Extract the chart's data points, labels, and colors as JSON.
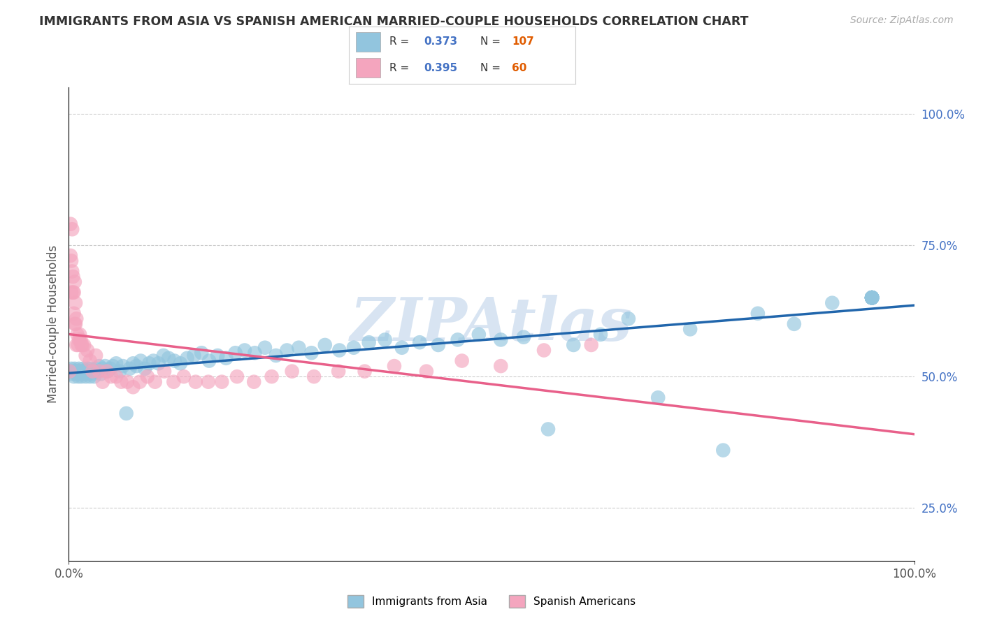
{
  "title": "IMMIGRANTS FROM ASIA VS SPANISH AMERICAN MARRIED-COUPLE HOUSEHOLDS CORRELATION CHART",
  "source": "Source: ZipAtlas.com",
  "ylabel": "Married-couple Households",
  "blue_R": 0.373,
  "blue_N": 107,
  "pink_R": 0.395,
  "pink_N": 60,
  "blue_color": "#92c5de",
  "pink_color": "#f4a5be",
  "blue_line_color": "#2166ac",
  "pink_line_color": "#e8608a",
  "watermark": "ZIPAtlas",
  "legend_label_blue": "Immigrants from Asia",
  "legend_label_pink": "Spanish Americans",
  "blue_scatter_x": [
    0.002,
    0.003,
    0.004,
    0.005,
    0.006,
    0.007,
    0.008,
    0.009,
    0.01,
    0.011,
    0.012,
    0.013,
    0.014,
    0.015,
    0.016,
    0.017,
    0.018,
    0.019,
    0.02,
    0.021,
    0.022,
    0.023,
    0.024,
    0.025,
    0.026,
    0.027,
    0.028,
    0.029,
    0.03,
    0.032,
    0.034,
    0.036,
    0.038,
    0.04,
    0.043,
    0.046,
    0.049,
    0.052,
    0.056,
    0.06,
    0.064,
    0.068,
    0.072,
    0.076,
    0.08,
    0.085,
    0.09,
    0.095,
    0.1,
    0.106,
    0.112,
    0.118,
    0.125,
    0.132,
    0.14,
    0.148,
    0.157,
    0.166,
    0.176,
    0.186,
    0.197,
    0.208,
    0.22,
    0.232,
    0.245,
    0.258,
    0.272,
    0.287,
    0.303,
    0.32,
    0.337,
    0.355,
    0.374,
    0.394,
    0.415,
    0.437,
    0.46,
    0.485,
    0.511,
    0.538,
    0.567,
    0.597,
    0.629,
    0.662,
    0.697,
    0.735,
    0.774,
    0.815,
    0.858,
    0.903,
    0.95,
    0.95,
    0.95,
    0.95,
    0.95,
    0.95,
    0.95,
    0.95,
    0.95,
    0.95,
    0.95,
    0.95,
    0.95,
    0.95,
    0.95,
    0.95,
    0.95
  ],
  "blue_scatter_y": [
    0.51,
    0.515,
    0.505,
    0.51,
    0.5,
    0.515,
    0.51,
    0.505,
    0.51,
    0.5,
    0.515,
    0.51,
    0.505,
    0.5,
    0.51,
    0.515,
    0.505,
    0.51,
    0.5,
    0.51,
    0.515,
    0.505,
    0.51,
    0.5,
    0.515,
    0.51,
    0.505,
    0.51,
    0.5,
    0.515,
    0.51,
    0.52,
    0.505,
    0.515,
    0.52,
    0.51,
    0.515,
    0.52,
    0.525,
    0.51,
    0.52,
    0.43,
    0.515,
    0.525,
    0.52,
    0.53,
    0.515,
    0.525,
    0.53,
    0.525,
    0.54,
    0.535,
    0.53,
    0.525,
    0.535,
    0.54,
    0.545,
    0.53,
    0.54,
    0.535,
    0.545,
    0.55,
    0.545,
    0.555,
    0.54,
    0.55,
    0.555,
    0.545,
    0.56,
    0.55,
    0.555,
    0.565,
    0.57,
    0.555,
    0.565,
    0.56,
    0.57,
    0.58,
    0.57,
    0.575,
    0.4,
    0.56,
    0.58,
    0.61,
    0.46,
    0.59,
    0.36,
    0.62,
    0.6,
    0.64,
    0.65,
    0.65,
    0.65,
    0.65,
    0.65,
    0.65,
    0.65,
    0.65,
    0.65,
    0.65,
    0.65,
    0.65,
    0.65,
    0.65,
    0.65,
    0.65,
    0.65
  ],
  "pink_scatter_x": [
    0.001,
    0.002,
    0.002,
    0.003,
    0.003,
    0.004,
    0.004,
    0.005,
    0.005,
    0.006,
    0.006,
    0.007,
    0.007,
    0.008,
    0.008,
    0.009,
    0.009,
    0.01,
    0.011,
    0.012,
    0.013,
    0.014,
    0.015,
    0.016,
    0.018,
    0.02,
    0.022,
    0.025,
    0.028,
    0.032,
    0.036,
    0.04,
    0.045,
    0.05,
    0.056,
    0.062,
    0.069,
    0.076,
    0.084,
    0.093,
    0.102,
    0.113,
    0.124,
    0.136,
    0.15,
    0.165,
    0.181,
    0.199,
    0.219,
    0.24,
    0.264,
    0.29,
    0.319,
    0.35,
    0.385,
    0.423,
    0.465,
    0.511,
    0.562,
    0.618
  ],
  "pink_scatter_y": [
    0.51,
    0.79,
    0.73,
    0.72,
    0.66,
    0.78,
    0.7,
    0.69,
    0.66,
    0.62,
    0.66,
    0.68,
    0.6,
    0.6,
    0.64,
    0.56,
    0.61,
    0.58,
    0.56,
    0.57,
    0.58,
    0.57,
    0.56,
    0.56,
    0.56,
    0.54,
    0.55,
    0.53,
    0.51,
    0.54,
    0.51,
    0.49,
    0.51,
    0.5,
    0.5,
    0.49,
    0.49,
    0.48,
    0.49,
    0.5,
    0.49,
    0.51,
    0.49,
    0.5,
    0.49,
    0.49,
    0.49,
    0.5,
    0.49,
    0.5,
    0.51,
    0.5,
    0.51,
    0.51,
    0.52,
    0.51,
    0.53,
    0.52,
    0.55,
    0.56
  ],
  "xlim": [
    0,
    1
  ],
  "ylim": [
    0.15,
    1.05
  ],
  "right_yticks": [
    0.25,
    0.5,
    0.75,
    1.0
  ],
  "right_yticklabels": [
    "25.0%",
    "50.0%",
    "75.0%",
    "100.0%"
  ],
  "grid_color": "#cccccc",
  "background_color": "#ffffff",
  "N_color": "#e05c00",
  "R_color": "#4472c4"
}
